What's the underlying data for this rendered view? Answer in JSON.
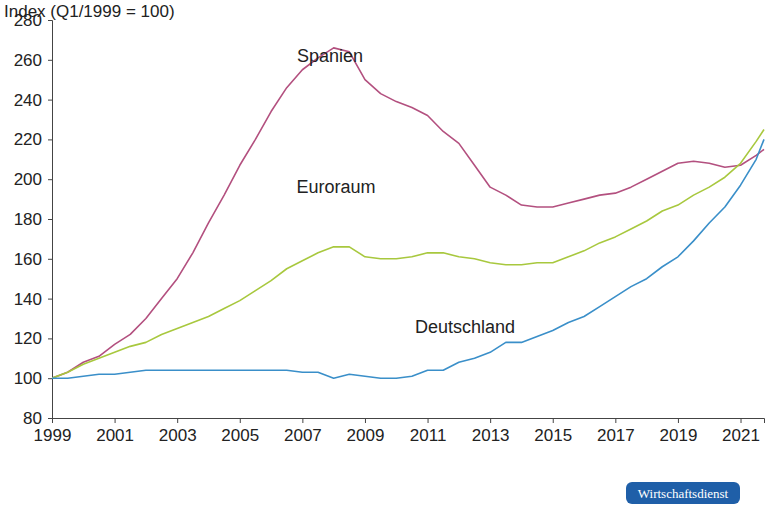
{
  "chart_data": {
    "type": "line",
    "ylabel": "Index (Q1/1999 = 100)",
    "annotations": [
      "Wirtschaftsdienst"
    ],
    "grid": false,
    "x": [
      1999,
      1999.5,
      2000,
      2000.5,
      2001,
      2001.5,
      2002,
      2002.5,
      2003,
      2003.5,
      2004,
      2004.5,
      2005,
      2005.5,
      2006,
      2006.5,
      2007,
      2007.5,
      2008,
      2008.5,
      2009,
      2009.5,
      2010,
      2010.5,
      2011,
      2011.5,
      2012,
      2012.5,
      2013,
      2013.5,
      2014,
      2014.5,
      2015,
      2015.5,
      2016,
      2016.5,
      2017,
      2017.5,
      2018,
      2018.5,
      2019,
      2019.5,
      2020,
      2020.5,
      2021,
      2021.5,
      2021.75
    ],
    "xlim": [
      1999,
      2021.75
    ],
    "xticks": [
      1999,
      2001,
      2003,
      2005,
      2007,
      2009,
      2011,
      2013,
      2015,
      2017,
      2019,
      2021
    ],
    "ylim": [
      80,
      280
    ],
    "yticks": [
      80,
      100,
      120,
      140,
      160,
      180,
      200,
      220,
      240,
      260,
      280
    ],
    "series": [
      {
        "name": "Spanien",
        "color": "#b3507f",
        "values": [
          100,
          103,
          108,
          111,
          117,
          122,
          130,
          140,
          150,
          163,
          178,
          192,
          207,
          220,
          234,
          246,
          255,
          261,
          266,
          264,
          250,
          243,
          239,
          236,
          232,
          224,
          218,
          207,
          196,
          192,
          187,
          186,
          186,
          188,
          190,
          192,
          193,
          196,
          200,
          204,
          208,
          209,
          208,
          206,
          207,
          212,
          215
        ]
      },
      {
        "name": "Euroraum",
        "color": "#a8c83e",
        "values": [
          100,
          103,
          107,
          110,
          113,
          116,
          118,
          122,
          125,
          128,
          131,
          135,
          139,
          144,
          149,
          155,
          159,
          163,
          166,
          166,
          161,
          160,
          160,
          161,
          163,
          163,
          161,
          160,
          158,
          157,
          157,
          158,
          158,
          161,
          164,
          168,
          171,
          175,
          179,
          184,
          187,
          192,
          196,
          201,
          208,
          219,
          225
        ]
      },
      {
        "name": "Deutschland",
        "color": "#3a8fc9",
        "values": [
          100,
          100,
          101,
          102,
          102,
          103,
          104,
          104,
          104,
          104,
          104,
          104,
          104,
          104,
          104,
          104,
          103,
          103,
          100,
          102,
          101,
          100,
          100,
          101,
          104,
          104,
          108,
          110,
          113,
          118,
          118,
          121,
          124,
          128,
          131,
          136,
          141,
          146,
          150,
          156,
          161,
          169,
          178,
          186,
          197,
          210,
          220
        ]
      }
    ]
  }
}
